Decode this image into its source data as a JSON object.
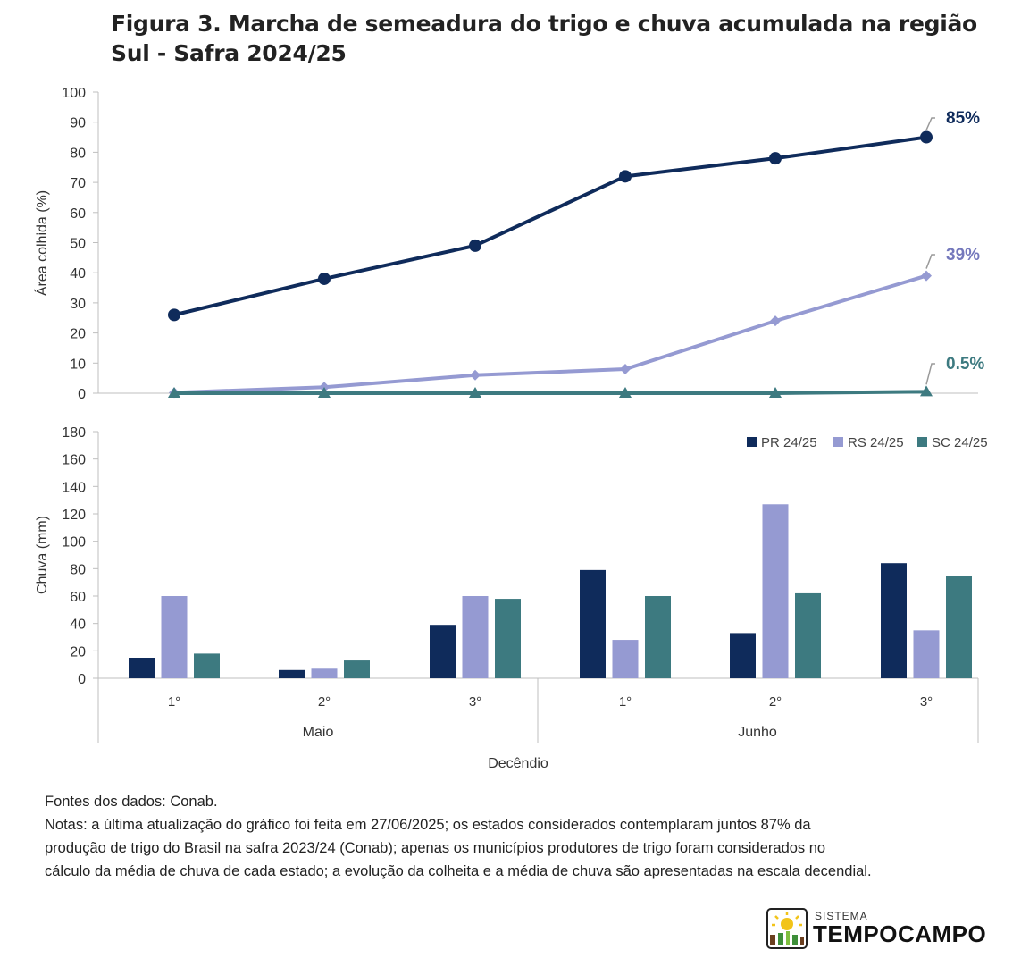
{
  "title": "Figura 3. Marcha de semeadura do trigo e chuva acumulada na região Sul - Safra 2024/25",
  "chart_data": [
    {
      "type": "line",
      "ylabel": "Área  colhida (%)",
      "ylim": [
        0,
        100
      ],
      "yticks": [
        "0",
        "10",
        "20",
        "30",
        "40",
        "50",
        "60",
        "70",
        "80",
        "90",
        "100"
      ],
      "series": [
        {
          "key": "pr",
          "color": "#0f2b5b",
          "marker": "circle",
          "values": [
            26,
            38,
            49,
            72,
            78,
            85
          ],
          "end_label": "85%"
        },
        {
          "key": "rs",
          "color": "#959ad2",
          "marker": "diamond",
          "values": [
            0.2,
            2,
            6,
            8,
            24,
            39
          ],
          "end_label": "39%"
        },
        {
          "key": "sc",
          "color": "#3d7a80",
          "marker": "triangle",
          "values": [
            0,
            0,
            0,
            0,
            0,
            0.5
          ],
          "end_label": "0.5%"
        }
      ],
      "label_colors": {
        "pr": "#0f2b5b",
        "rs": "#7478bc",
        "sc": "#3d7a80"
      }
    },
    {
      "type": "bar",
      "ylabel": "Chuva (mm)",
      "xlabel": "Decêndio",
      "ylim": [
        0,
        180
      ],
      "yticks": [
        "0",
        "20",
        "40",
        "60",
        "80",
        "100",
        "120",
        "140",
        "160",
        "180"
      ],
      "categories": [
        "1°",
        "2°",
        "3°",
        "1°",
        "2°",
        "3°"
      ],
      "groups": [
        "Maio",
        "Junho"
      ],
      "legend_position": "top-right",
      "series": [
        {
          "name": "PR 24/25",
          "color": "#0f2b5b",
          "values": [
            15,
            6,
            39,
            79,
            33,
            84
          ]
        },
        {
          "name": "RS 24/25",
          "color": "#959ad2",
          "values": [
            60,
            7,
            60,
            28,
            127,
            35
          ]
        },
        {
          "name": "SC 24/25",
          "color": "#3d7a80",
          "values": [
            18,
            13,
            58,
            60,
            62,
            75
          ]
        }
      ]
    }
  ],
  "notes": {
    "source": "Fontes dos dados: Conab.",
    "lines": [
      "Notas: a última atualização do gráfico foi feita em 27/06/2025; os estados considerados contemplaram juntos 87% da",
      "produção de trigo do Brasil na safra 2023/24 (Conab); apenas os municípios produtores de trigo foram considerados no",
      "cálculo da média de chuva de cada estado; a evolução da colheita e a média de chuva são apresentadas na escala decendial."
    ]
  },
  "logo": {
    "small": "SISTEMA",
    "big": "TEMPOCAMPO"
  }
}
